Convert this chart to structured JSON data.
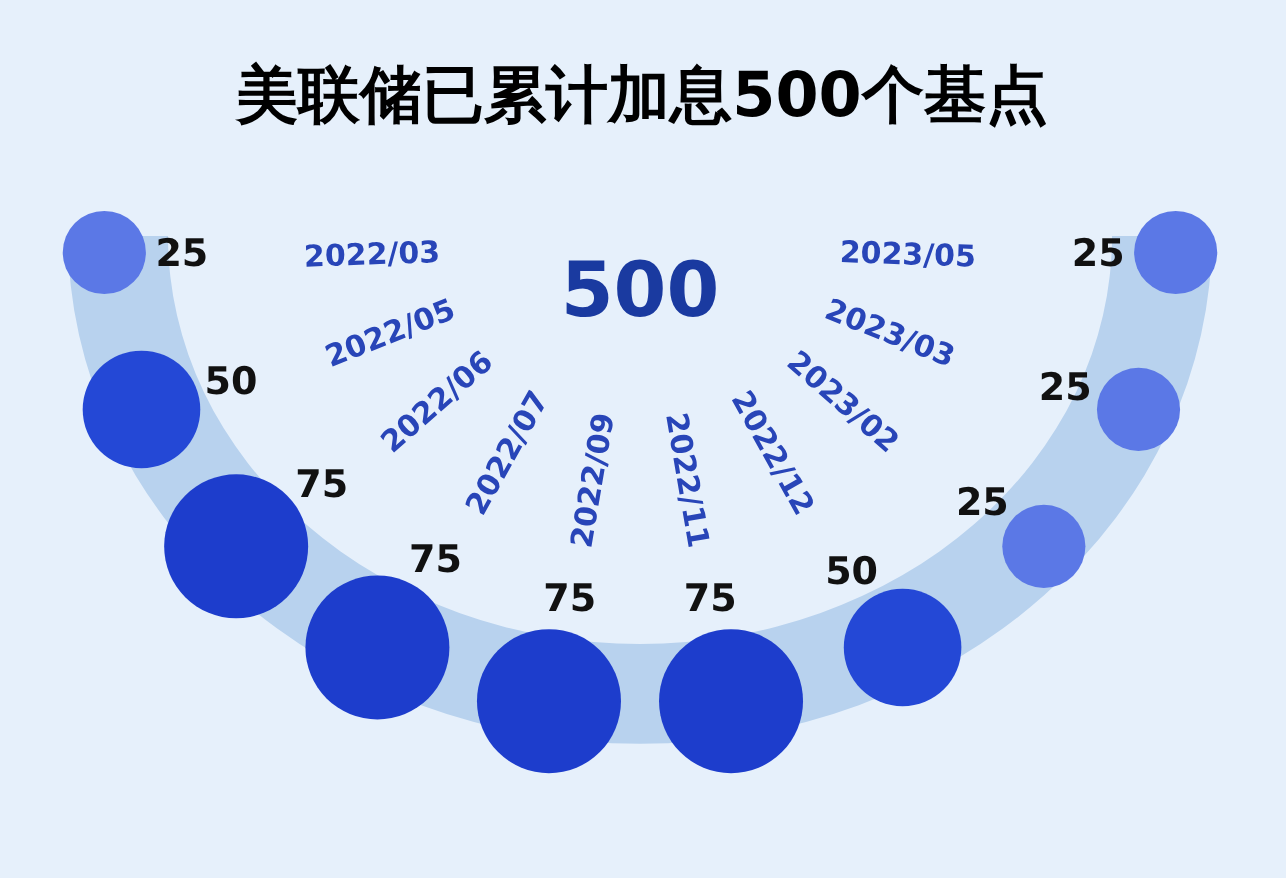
{
  "chart_data": {
    "type": "other",
    "title": "美联储已累计加息500个基点",
    "annotations": [
      "500"
    ],
    "categories": [
      "2022/03",
      "2022/05",
      "2022/06",
      "2022/07",
      "2022/09",
      "2022/11",
      "2022/12",
      "2023/02",
      "2023/03",
      "2023/05"
    ],
    "values": [
      25,
      50,
      75,
      75,
      75,
      75,
      50,
      25,
      25,
      25
    ],
    "colors": [
      "#5b78e6",
      "#2448d6",
      "#1d3dcc",
      "#1d3dcc",
      "#1d3dcc",
      "#1d3dcc",
      "#2448d6",
      "#5b78e6",
      "#5b78e6",
      "#5b78e6"
    ],
    "data_labels": true
  }
}
